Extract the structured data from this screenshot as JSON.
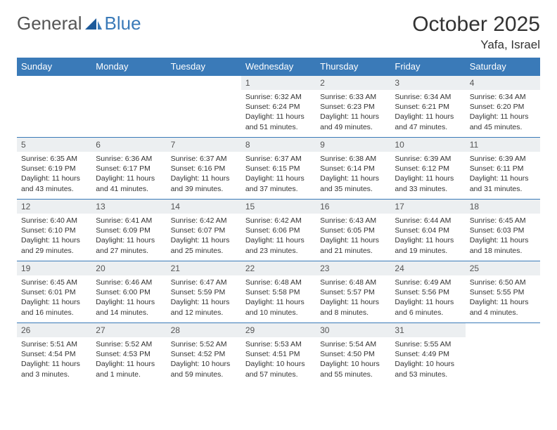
{
  "logo": {
    "general": "General",
    "blue": "Blue"
  },
  "title": "October 2025",
  "location": "Yafa, Israel",
  "colors": {
    "header_bg": "#3a7ab8",
    "header_text": "#ffffff",
    "daynum_bg": "#eceff1",
    "text": "#333333",
    "logo_gray": "#555555",
    "logo_blue": "#3a7ab8"
  },
  "weekdays": [
    "Sunday",
    "Monday",
    "Tuesday",
    "Wednesday",
    "Thursday",
    "Friday",
    "Saturday"
  ],
  "weeks": [
    [
      {
        "n": "",
        "sr": "",
        "ss": "",
        "dl": ""
      },
      {
        "n": "",
        "sr": "",
        "ss": "",
        "dl": ""
      },
      {
        "n": "",
        "sr": "",
        "ss": "",
        "dl": ""
      },
      {
        "n": "1",
        "sr": "Sunrise: 6:32 AM",
        "ss": "Sunset: 6:24 PM",
        "dl": "Daylight: 11 hours and 51 minutes."
      },
      {
        "n": "2",
        "sr": "Sunrise: 6:33 AM",
        "ss": "Sunset: 6:23 PM",
        "dl": "Daylight: 11 hours and 49 minutes."
      },
      {
        "n": "3",
        "sr": "Sunrise: 6:34 AM",
        "ss": "Sunset: 6:21 PM",
        "dl": "Daylight: 11 hours and 47 minutes."
      },
      {
        "n": "4",
        "sr": "Sunrise: 6:34 AM",
        "ss": "Sunset: 6:20 PM",
        "dl": "Daylight: 11 hours and 45 minutes."
      }
    ],
    [
      {
        "n": "5",
        "sr": "Sunrise: 6:35 AM",
        "ss": "Sunset: 6:19 PM",
        "dl": "Daylight: 11 hours and 43 minutes."
      },
      {
        "n": "6",
        "sr": "Sunrise: 6:36 AM",
        "ss": "Sunset: 6:17 PM",
        "dl": "Daylight: 11 hours and 41 minutes."
      },
      {
        "n": "7",
        "sr": "Sunrise: 6:37 AM",
        "ss": "Sunset: 6:16 PM",
        "dl": "Daylight: 11 hours and 39 minutes."
      },
      {
        "n": "8",
        "sr": "Sunrise: 6:37 AM",
        "ss": "Sunset: 6:15 PM",
        "dl": "Daylight: 11 hours and 37 minutes."
      },
      {
        "n": "9",
        "sr": "Sunrise: 6:38 AM",
        "ss": "Sunset: 6:14 PM",
        "dl": "Daylight: 11 hours and 35 minutes."
      },
      {
        "n": "10",
        "sr": "Sunrise: 6:39 AM",
        "ss": "Sunset: 6:12 PM",
        "dl": "Daylight: 11 hours and 33 minutes."
      },
      {
        "n": "11",
        "sr": "Sunrise: 6:39 AM",
        "ss": "Sunset: 6:11 PM",
        "dl": "Daylight: 11 hours and 31 minutes."
      }
    ],
    [
      {
        "n": "12",
        "sr": "Sunrise: 6:40 AM",
        "ss": "Sunset: 6:10 PM",
        "dl": "Daylight: 11 hours and 29 minutes."
      },
      {
        "n": "13",
        "sr": "Sunrise: 6:41 AM",
        "ss": "Sunset: 6:09 PM",
        "dl": "Daylight: 11 hours and 27 minutes."
      },
      {
        "n": "14",
        "sr": "Sunrise: 6:42 AM",
        "ss": "Sunset: 6:07 PM",
        "dl": "Daylight: 11 hours and 25 minutes."
      },
      {
        "n": "15",
        "sr": "Sunrise: 6:42 AM",
        "ss": "Sunset: 6:06 PM",
        "dl": "Daylight: 11 hours and 23 minutes."
      },
      {
        "n": "16",
        "sr": "Sunrise: 6:43 AM",
        "ss": "Sunset: 6:05 PM",
        "dl": "Daylight: 11 hours and 21 minutes."
      },
      {
        "n": "17",
        "sr": "Sunrise: 6:44 AM",
        "ss": "Sunset: 6:04 PM",
        "dl": "Daylight: 11 hours and 19 minutes."
      },
      {
        "n": "18",
        "sr": "Sunrise: 6:45 AM",
        "ss": "Sunset: 6:03 PM",
        "dl": "Daylight: 11 hours and 18 minutes."
      }
    ],
    [
      {
        "n": "19",
        "sr": "Sunrise: 6:45 AM",
        "ss": "Sunset: 6:01 PM",
        "dl": "Daylight: 11 hours and 16 minutes."
      },
      {
        "n": "20",
        "sr": "Sunrise: 6:46 AM",
        "ss": "Sunset: 6:00 PM",
        "dl": "Daylight: 11 hours and 14 minutes."
      },
      {
        "n": "21",
        "sr": "Sunrise: 6:47 AM",
        "ss": "Sunset: 5:59 PM",
        "dl": "Daylight: 11 hours and 12 minutes."
      },
      {
        "n": "22",
        "sr": "Sunrise: 6:48 AM",
        "ss": "Sunset: 5:58 PM",
        "dl": "Daylight: 11 hours and 10 minutes."
      },
      {
        "n": "23",
        "sr": "Sunrise: 6:48 AM",
        "ss": "Sunset: 5:57 PM",
        "dl": "Daylight: 11 hours and 8 minutes."
      },
      {
        "n": "24",
        "sr": "Sunrise: 6:49 AM",
        "ss": "Sunset: 5:56 PM",
        "dl": "Daylight: 11 hours and 6 minutes."
      },
      {
        "n": "25",
        "sr": "Sunrise: 6:50 AM",
        "ss": "Sunset: 5:55 PM",
        "dl": "Daylight: 11 hours and 4 minutes."
      }
    ],
    [
      {
        "n": "26",
        "sr": "Sunrise: 5:51 AM",
        "ss": "Sunset: 4:54 PM",
        "dl": "Daylight: 11 hours and 3 minutes."
      },
      {
        "n": "27",
        "sr": "Sunrise: 5:52 AM",
        "ss": "Sunset: 4:53 PM",
        "dl": "Daylight: 11 hours and 1 minute."
      },
      {
        "n": "28",
        "sr": "Sunrise: 5:52 AM",
        "ss": "Sunset: 4:52 PM",
        "dl": "Daylight: 10 hours and 59 minutes."
      },
      {
        "n": "29",
        "sr": "Sunrise: 5:53 AM",
        "ss": "Sunset: 4:51 PM",
        "dl": "Daylight: 10 hours and 57 minutes."
      },
      {
        "n": "30",
        "sr": "Sunrise: 5:54 AM",
        "ss": "Sunset: 4:50 PM",
        "dl": "Daylight: 10 hours and 55 minutes."
      },
      {
        "n": "31",
        "sr": "Sunrise: 5:55 AM",
        "ss": "Sunset: 4:49 PM",
        "dl": "Daylight: 10 hours and 53 minutes."
      },
      {
        "n": "",
        "sr": "",
        "ss": "",
        "dl": ""
      }
    ]
  ]
}
